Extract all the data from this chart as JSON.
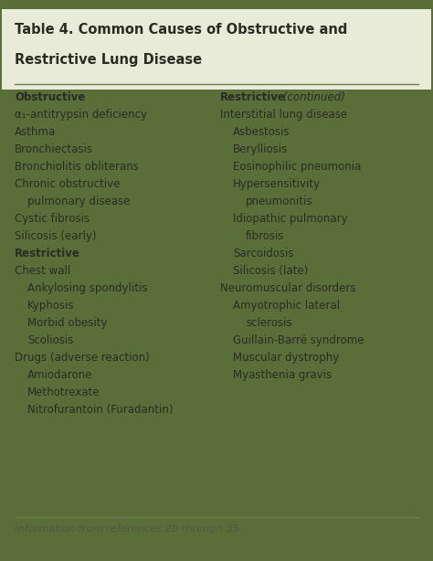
{
  "title_line1": "Table 4. Common Causes of Obstructive and",
  "title_line2": "Restrictive Lung Disease",
  "outer_bg": "#5a6e3a",
  "inner_bg": "#dde1cf",
  "title_bg": "#e8ebd8",
  "line_color": "#6b7a4a",
  "text_color": "#2a2c24",
  "footer_italic_color": "#555544",
  "footer_text": "Information from references 20 through 35.",
  "left_column": [
    {
      "text": "Obstructive",
      "bold": true,
      "indent": 0
    },
    {
      "text": "α₁-antitrypsin deficiency",
      "bold": false,
      "indent": 0
    },
    {
      "text": "Asthma",
      "bold": false,
      "indent": 0
    },
    {
      "text": "Bronchiectasis",
      "bold": false,
      "indent": 0
    },
    {
      "text": "Bronchiolitis obliterans",
      "bold": false,
      "indent": 0
    },
    {
      "text": "Chronic obstructive",
      "bold": false,
      "indent": 0
    },
    {
      "text": "pulmonary disease",
      "bold": false,
      "indent": 1
    },
    {
      "text": "Cystic fibrosis",
      "bold": false,
      "indent": 0
    },
    {
      "text": "Silicosis (early)",
      "bold": false,
      "indent": 0
    },
    {
      "text": "Restrictive",
      "bold": true,
      "indent": 0
    },
    {
      "text": "Chest wall",
      "bold": false,
      "indent": 0
    },
    {
      "text": "Ankylosing spondylitis",
      "bold": false,
      "indent": 1
    },
    {
      "text": "Kyphosis",
      "bold": false,
      "indent": 1
    },
    {
      "text": "Morbid obesity",
      "bold": false,
      "indent": 1
    },
    {
      "text": "Scoliosis",
      "bold": false,
      "indent": 1
    },
    {
      "text": "Drugs (adverse reaction)",
      "bold": false,
      "indent": 0
    },
    {
      "text": "Amiodarone",
      "bold": false,
      "indent": 1
    },
    {
      "text": "Methotrexate",
      "bold": false,
      "indent": 1
    },
    {
      "text": "Nitrofurantoin (Furadantin)",
      "bold": false,
      "indent": 1
    }
  ],
  "right_column": [
    {
      "text": "Restrictive",
      "bold": true,
      "italic_suffix": " (continued)",
      "indent": 0
    },
    {
      "text": "Interstitial lung disease",
      "bold": false,
      "indent": 0
    },
    {
      "text": "Asbestosis",
      "bold": false,
      "indent": 1
    },
    {
      "text": "Berylliosis",
      "bold": false,
      "indent": 1
    },
    {
      "text": "Eosinophilic pneumonia",
      "bold": false,
      "indent": 1
    },
    {
      "text": "Hypersensitivity",
      "bold": false,
      "indent": 1
    },
    {
      "text": "pneumonitis",
      "bold": false,
      "indent": 2
    },
    {
      "text": "Idiopathic pulmonary",
      "bold": false,
      "indent": 1
    },
    {
      "text": "fibrosis",
      "bold": false,
      "indent": 2
    },
    {
      "text": "Sarcoidosis",
      "bold": false,
      "indent": 1
    },
    {
      "text": "Silicosis (late)",
      "bold": false,
      "indent": 1
    },
    {
      "text": "Neuromuscular disorders",
      "bold": false,
      "indent": 0
    },
    {
      "text": "Amyotrophic lateral",
      "bold": false,
      "indent": 1
    },
    {
      "text": "sclerosis",
      "bold": false,
      "indent": 2
    },
    {
      "text": "Guillain-Barré syndrome",
      "bold": false,
      "indent": 1
    },
    {
      "text": "Muscular dystrophy",
      "bold": false,
      "indent": 1
    },
    {
      "text": "Myasthenia gravis",
      "bold": false,
      "indent": 1
    }
  ]
}
